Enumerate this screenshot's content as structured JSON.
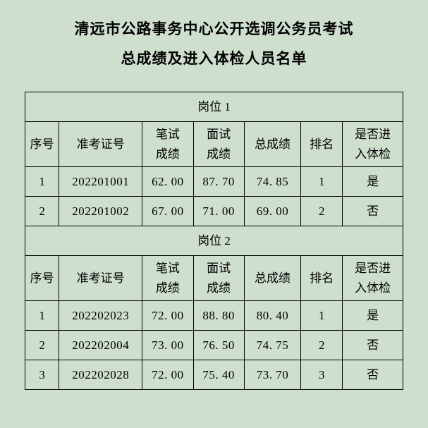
{
  "title_line1": "清远市公路事务中心公开选调公务员考试",
  "title_line2": "总成绩及进入体检人员名单",
  "columns": {
    "seq": "序号",
    "exam_no": "准考证号",
    "written": "笔试成绩",
    "interview": "面试成绩",
    "total": "总成绩",
    "rank": "排名",
    "pass": "是否进入体检"
  },
  "positions": [
    {
      "name": "岗位 1",
      "rows": [
        {
          "seq": "1",
          "exam_no": "202201001",
          "written": "62. 00",
          "interview": "87. 70",
          "total": "74. 85",
          "rank": "1",
          "pass": "是"
        },
        {
          "seq": "2",
          "exam_no": "202201002",
          "written": "67. 00",
          "interview": "71. 00",
          "total": "69. 00",
          "rank": "2",
          "pass": "否"
        }
      ]
    },
    {
      "name": "岗位 2",
      "rows": [
        {
          "seq": "1",
          "exam_no": "202202023",
          "written": "72. 00",
          "interview": "88. 80",
          "total": "80. 40",
          "rank": "1",
          "pass": "是"
        },
        {
          "seq": "2",
          "exam_no": "202202004",
          "written": "73. 00",
          "interview": "76. 50",
          "total": "74. 75",
          "rank": "2",
          "pass": "否"
        },
        {
          "seq": "3",
          "exam_no": "202202028",
          "written": "72. 00",
          "interview": "75. 40",
          "total": "73. 70",
          "rank": "3",
          "pass": "否"
        }
      ]
    }
  ],
  "style": {
    "background_color": "#cedfce",
    "border_color": "#000000",
    "text_color": "#000000",
    "title_fontsize": 21,
    "cell_fontsize": 17,
    "font_family": "SimSun"
  }
}
